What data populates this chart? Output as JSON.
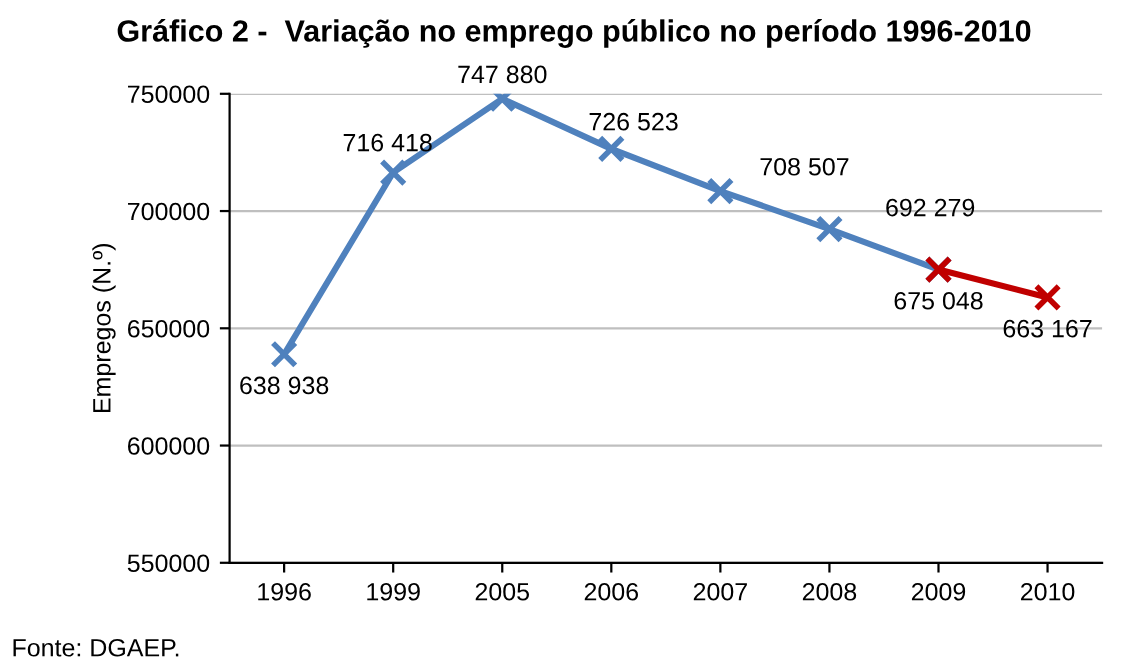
{
  "chart_data": {
    "type": "line",
    "title": "Gráfico 2 -  Variação no emprego público no período 1996-2010",
    "ylabel": "Empregos (N.º)",
    "categories": [
      "1996",
      "1999",
      "2005",
      "2006",
      "2007",
      "2008",
      "2009",
      "2010"
    ],
    "series": [
      {
        "color": "#4f81bd",
        "values": [
          638938,
          716418,
          747880,
          726523,
          708507,
          692279,
          675048,
          null
        ],
        "value_labels": [
          "638 938",
          "716 418",
          "747 880",
          "726 523",
          "708 507",
          "692 279",
          "675 048",
          null
        ]
      },
      {
        "color": "#c00000",
        "values": [
          null,
          null,
          null,
          null,
          null,
          null,
          675048,
          663167
        ],
        "value_labels": [
          null,
          null,
          null,
          null,
          null,
          null,
          null,
          "663 167"
        ]
      }
    ],
    "ylim": [
      550000,
      750000
    ],
    "yticks": [
      550000,
      600000,
      650000,
      700000,
      750000
    ],
    "grid": "y",
    "marker": "cross",
    "line_style": "solid",
    "annotations": [
      "Fonte: DGAEP."
    ]
  }
}
